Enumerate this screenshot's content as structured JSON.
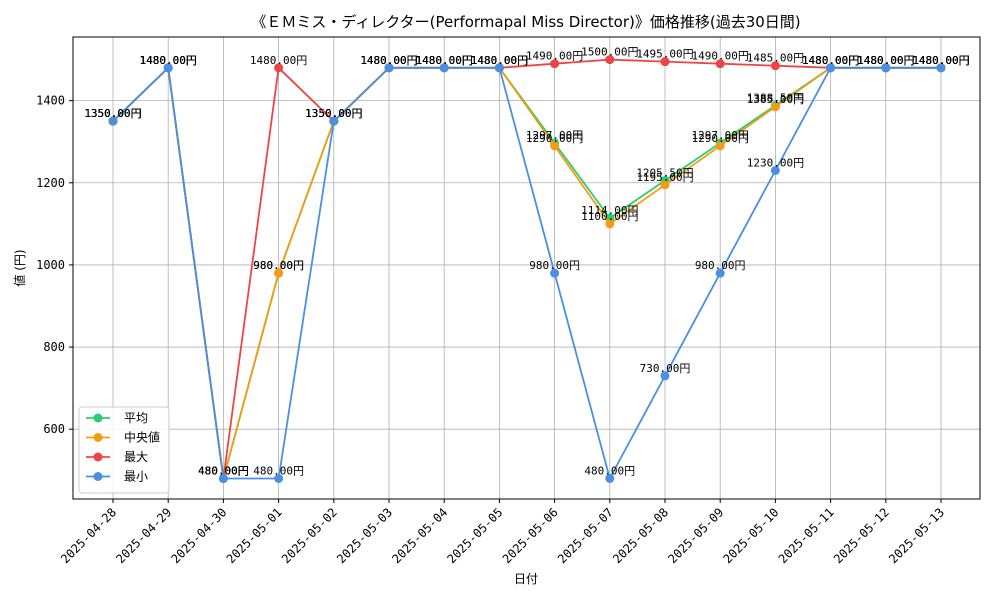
{
  "chart_data": {
    "type": "line",
    "title": "《ＥＭミス・ディレクター(Performapal Miss Director)》価格推移(過去30日間)",
    "xlabel": "日付",
    "ylabel": "値 (円)",
    "ylim": [
      430,
      1555
    ],
    "yticks": [
      600,
      800,
      1000,
      1200,
      1400
    ],
    "grid": true,
    "legend_position": "lower-left",
    "categories": [
      "2025-04-28",
      "2025-04-29",
      "2025-04-30",
      "2025-05-01",
      "2025-05-02",
      "2025-05-03",
      "2025-05-04",
      "2025-05-05",
      "2025-05-06",
      "2025-05-07",
      "2025-05-08",
      "2025-05-09",
      "2025-05-10",
      "2025-05-11",
      "2025-05-12",
      "2025-05-13"
    ],
    "series": [
      {
        "name": "平均",
        "color": "#2ecc71",
        "values": [
          1350,
          1480,
          480,
          980,
          1350,
          1480,
          1480,
          1480,
          1297,
          1114,
          1205.5,
          1297,
          1388.5,
          1480,
          1480,
          1480
        ],
        "labels": [
          "1350.00円",
          "1480.00円",
          "480.00円",
          "980.00円",
          "1350.00円",
          "1480.00円",
          "1480.00円",
          "1480.00円",
          "1297.00円",
          "1114.00円",
          "1205.50円",
          "1297.00円",
          "1388.50円",
          "1480.00円",
          "1480.00円",
          "1480.00円"
        ]
      },
      {
        "name": "中央値",
        "color": "#f39c12",
        "values": [
          1350,
          1480,
          480,
          980,
          1350,
          1480,
          1480,
          1480,
          1290,
          1100,
          1195,
          1290,
          1385,
          1480,
          1480,
          1480
        ],
        "labels": [
          "1350.00円",
          "1480.00円",
          "480.00円",
          "980.00円",
          "1350.00円",
          "1480.00円",
          "1480.00円",
          "1480.00円",
          "1290.00円",
          "1100.00円",
          "1195.00円",
          "1290.00円",
          "1385.00円",
          "1480.00円",
          "1480.00円",
          "1480.00円"
        ]
      },
      {
        "name": "最大",
        "color": "#ef4444",
        "values": [
          1350,
          1480,
          480,
          1480,
          1350,
          1480,
          1480,
          1480,
          1490,
          1500,
          1495,
          1490,
          1485,
          1480,
          1480,
          1480
        ],
        "labels": [
          "1350.00円",
          "1480.00円",
          "480.00円",
          "1480.00円",
          "1350.00円",
          "1480.00円",
          "1480.00円",
          "1480.00円",
          "1490.00円",
          "1500.00円",
          "1495.00円",
          "1490.00円",
          "1485.00円",
          "1480.00円",
          "1480.00円",
          "1480.00円"
        ]
      },
      {
        "name": "最小",
        "color": "#4a90e2",
        "values": [
          1350,
          1480,
          480,
          480,
          1350,
          1480,
          1480,
          1480,
          980,
          480,
          730,
          980,
          1230,
          1480,
          1480,
          1480
        ],
        "labels": [
          "1350.00円",
          "1480.00円",
          "480.00円",
          "480.00円",
          "1350.00円",
          "1480.00円",
          "1480.00円",
          "1480.00円",
          "980.00円",
          "480.00円",
          "730.00円",
          "980.00円",
          "1230.00円",
          "1480.00円",
          "1480.00円",
          "1480.00円"
        ]
      }
    ]
  }
}
